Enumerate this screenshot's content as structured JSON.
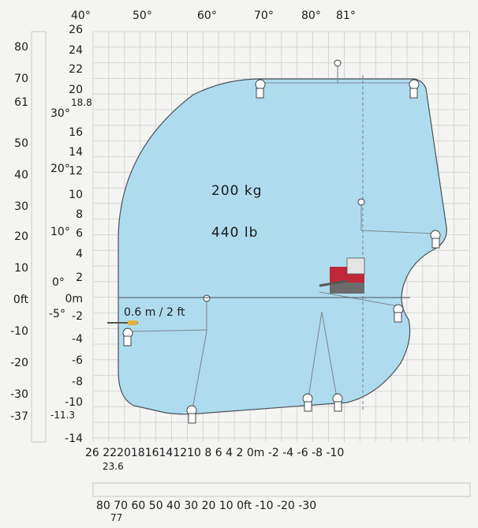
{
  "diagram": {
    "top_angle_labels": [
      "40°",
      "50°",
      "60°",
      "70°",
      "80°",
      "81°"
    ],
    "side_angle_labels": [
      "30°",
      "20°",
      "10°",
      "0°",
      "-5°"
    ],
    "y_axis_m": {
      "ticks": [
        "26",
        "24",
        "22",
        "20",
        "16",
        "14",
        "12",
        "10",
        "8",
        "6",
        "4",
        "2",
        "0m",
        "-2",
        "-4",
        "-6",
        "-8",
        "-10",
        "-14"
      ],
      "extra": [
        "18.8",
        "-11.3"
      ]
    },
    "y_axis_ft": {
      "ticks": [
        "80",
        "70",
        "61",
        "50",
        "40",
        "30",
        "20",
        "10",
        "0ft",
        "-10",
        "-20",
        "-30",
        "-37"
      ]
    },
    "x_axis_m": {
      "label_text": "26  22201816141210 8  6  4  2 0m -2  -4  -6  -8 -10",
      "extra": "23.6"
    },
    "x_axis_ft": {
      "label_text": "80  70  60  50  40  30  20  10  0ft -10  -20  -30",
      "extra": "77"
    },
    "capacity_kg": "200 kg",
    "capacity_lb": "440 lb",
    "offset_label": "0.6 m / 2 ft",
    "envelope_color": "#aedcee",
    "accent_color": "#c0283a"
  }
}
